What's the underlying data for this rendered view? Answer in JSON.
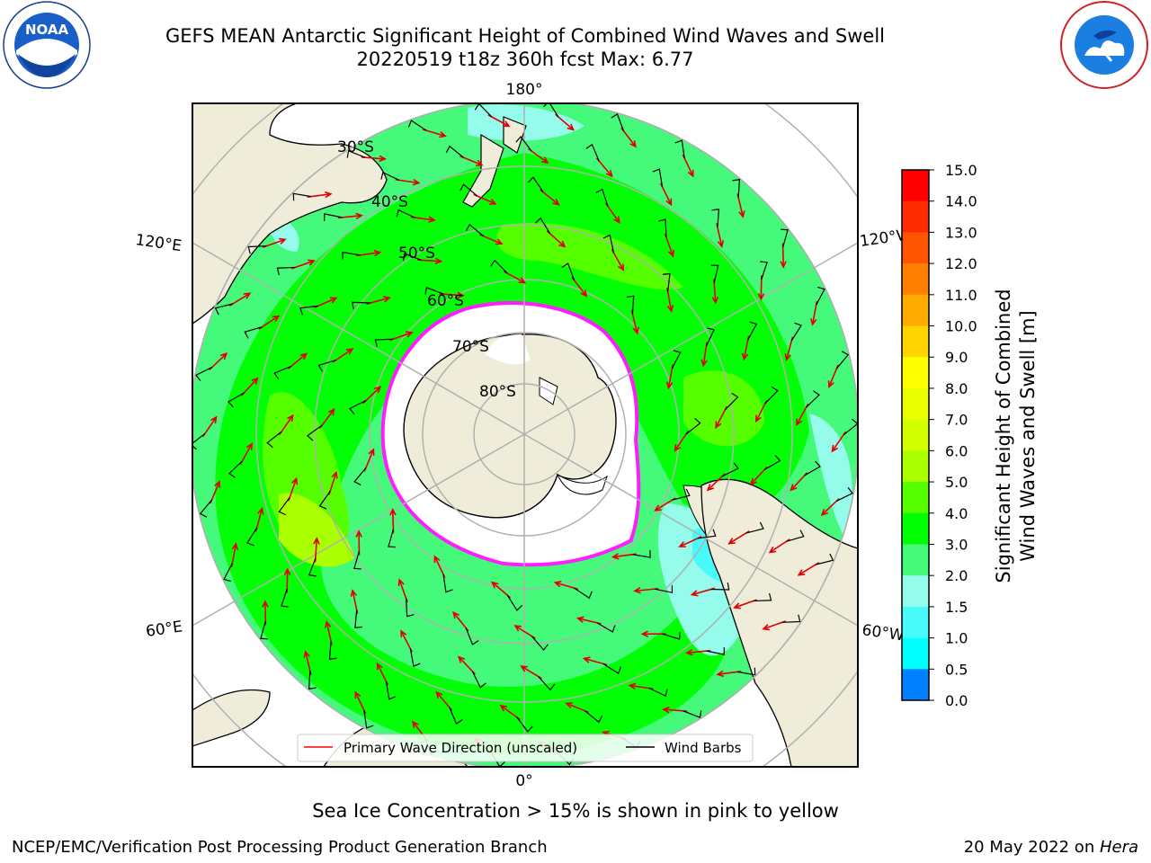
{
  "title": {
    "line1": "GEFS MEAN Antarctic Significant Height of Combined Wind Waves and Swell",
    "line2": "20220519 t18z 360h fcst   Max: 6.77"
  },
  "logos": {
    "left": {
      "name": "noaa-logo",
      "text": "NOAA"
    },
    "right": {
      "name": "national-weather-service-logo",
      "text": "NATIONAL WEATHER SERVICE"
    }
  },
  "map": {
    "projection": "south-polar-stereographic",
    "longitude_labels": {
      "top": "180°",
      "bottom": "0°",
      "upper_left": "120°E",
      "upper_right": "120°W",
      "lower_left": "60°E",
      "lower_right": "60°W"
    },
    "latitude_labels": [
      "30°S",
      "40°S",
      "50°S",
      "60°S",
      "70°S",
      "80°S"
    ],
    "legend": [
      {
        "label": "Primary Wave Direction (unscaled)",
        "color": "#ff0000"
      },
      {
        "label": "Wind Barbs",
        "color": "#000000"
      }
    ]
  },
  "colorbar": {
    "title_line1": "Significant Height of Combined",
    "title_line2": "Wind Waves and Swell [m]",
    "ticks": [
      "15.0",
      "14.0",
      "13.0",
      "12.0",
      "11.0",
      "10.0",
      "9.0",
      "8.0",
      "7.0",
      "6.0",
      "5.0",
      "4.0",
      "3.0",
      "2.0",
      "1.5",
      "1.0",
      "0.5",
      "0.0"
    ],
    "colors": [
      "#ff0000",
      "#ff2a00",
      "#ff5500",
      "#ff8000",
      "#ffaa00",
      "#ffd400",
      "#ffff00",
      "#eaff00",
      "#d4ff00",
      "#aaff00",
      "#55ff00",
      "#00ff00",
      "#45fa7a",
      "#95fbeb",
      "#48fbfa",
      "#00ffff",
      "#0080ff",
      "#0000ff"
    ]
  },
  "footer": {
    "sea_ice_note": "Sea Ice Concentration > 15% is shown in pink to yellow",
    "credit_left": "NCEP/EMC/Verification Post Processing Product Generation Branch",
    "credit_right_date": "20 May 2022 on ",
    "credit_right_host": "Hera"
  }
}
